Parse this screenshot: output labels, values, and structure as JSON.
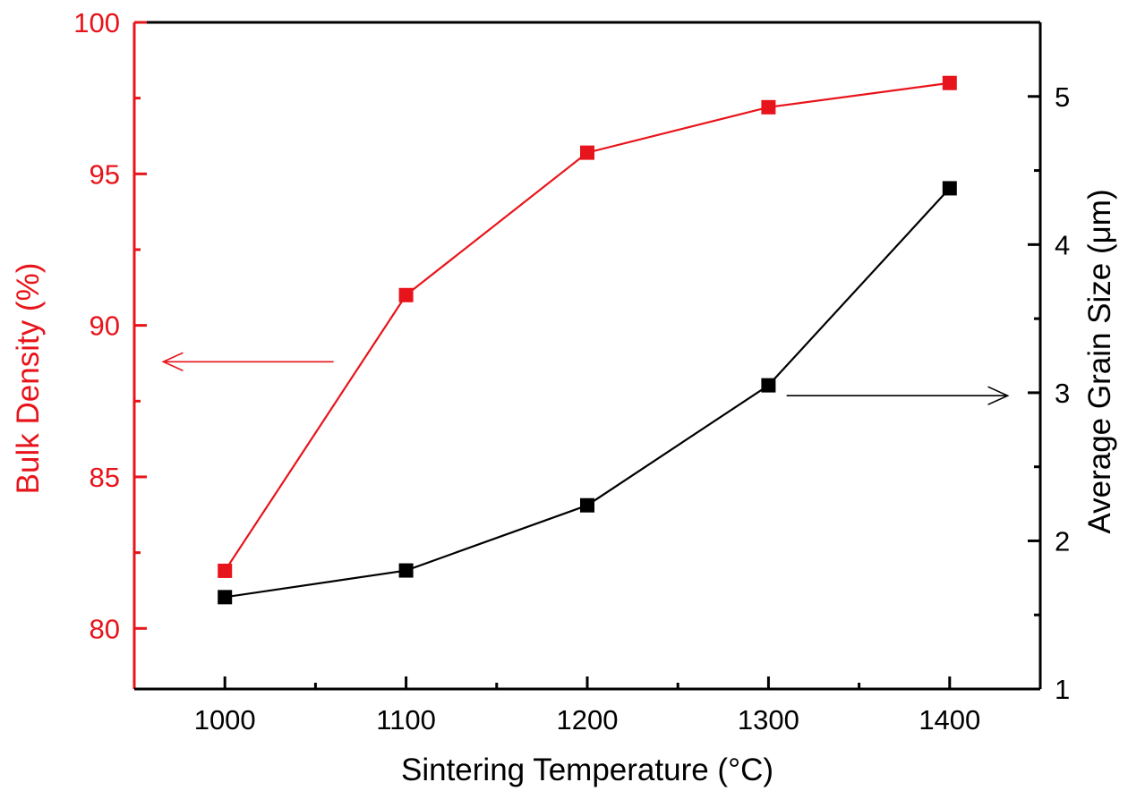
{
  "chart_data": {
    "type": "line",
    "title": "",
    "xlabel": "Sintering Temperature (°C)",
    "x": [
      1000,
      1100,
      1200,
      1300,
      1400
    ],
    "xlim": [
      950,
      1450
    ],
    "x_ticks": [
      1000,
      1100,
      1200,
      1300,
      1400
    ],
    "x_tick_labels": [
      "1000",
      "1100",
      "1200",
      "1300",
      "1400"
    ],
    "x_minor_ticks": [
      1050,
      1150,
      1250,
      1350
    ],
    "y_left": {
      "label": "Bulk Density (%)",
      "lim": [
        78,
        100
      ],
      "ticks": [
        80,
        85,
        90,
        95,
        100
      ],
      "tick_labels": [
        "80",
        "85",
        "90",
        "95",
        "100"
      ],
      "minor_ticks": [
        82.5,
        87.5,
        92.5,
        97.5
      ],
      "color": "#e8141b"
    },
    "y_right": {
      "label": "Average Grain Size (μm)",
      "lim": [
        1,
        5.5
      ],
      "ticks": [
        1,
        2,
        3,
        4,
        5
      ],
      "tick_labels": [
        "1",
        "2",
        "3",
        "4",
        "5"
      ],
      "minor_ticks": [
        1.5,
        2.5,
        3.5,
        4.5
      ],
      "color": "#000000"
    },
    "series": [
      {
        "name": "Bulk Density",
        "axis": "left",
        "color": "#e8141b",
        "marker": "square",
        "values": [
          81.9,
          91.0,
          95.7,
          97.2,
          98.0
        ]
      },
      {
        "name": "Average Grain Size",
        "axis": "right",
        "color": "#000000",
        "marker": "square",
        "values": [
          1.62,
          1.8,
          2.24,
          3.05,
          4.38
        ]
      }
    ],
    "annotations": [
      {
        "type": "arrow",
        "direction": "left",
        "axis": "left",
        "from_x": 1060,
        "to_x": 966,
        "y": 88.8,
        "color": "#e8141b"
      },
      {
        "type": "arrow",
        "direction": "right",
        "axis": "right",
        "from_x": 1310,
        "to_x": 1432,
        "y": 2.98,
        "color": "#000000"
      }
    ]
  }
}
